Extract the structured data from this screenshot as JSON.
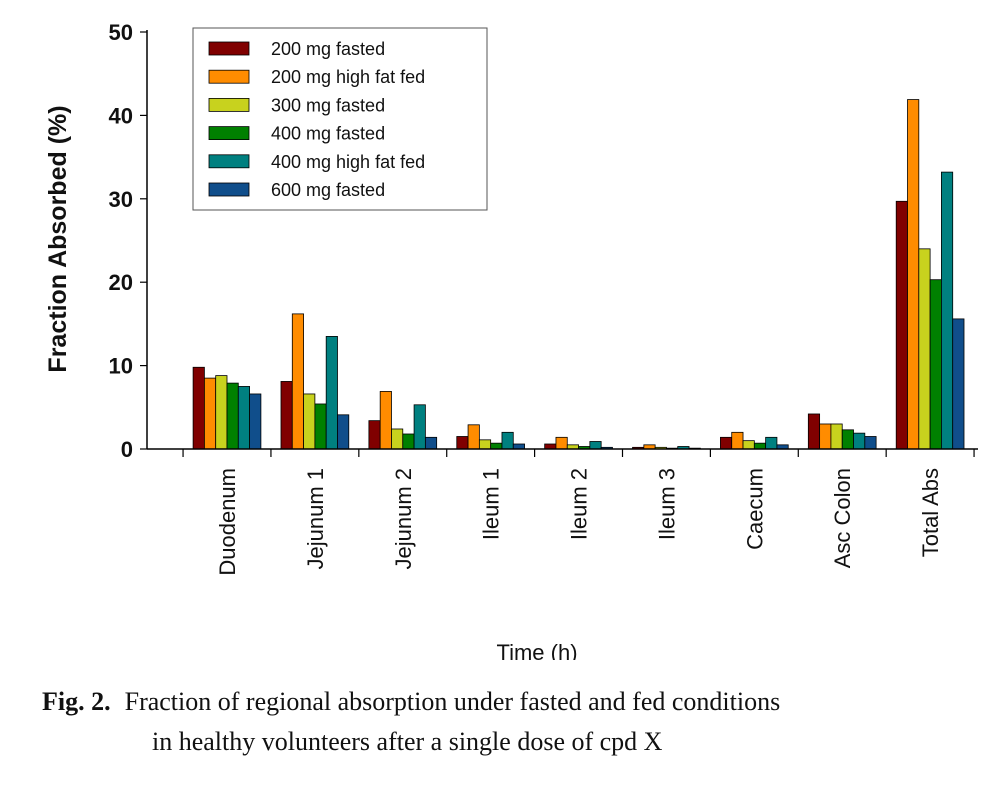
{
  "chart_data": {
    "type": "bar",
    "ylabel": "Fraction Absorbed (%)",
    "xlabel": "Time (h)",
    "ylim": [
      0,
      50
    ],
    "yticks": [
      0,
      10,
      20,
      30,
      40,
      50
    ],
    "grid": false,
    "legend_position": "top-left",
    "categories": [
      "Duodenum",
      "Jejunum 1",
      "Jejunum 2",
      "Ileum 1",
      "Ileum 2",
      "Ileum 3",
      "Caecum",
      "Asc Colon",
      "Total Abs"
    ],
    "series": [
      {
        "name": "200 mg fasted",
        "color": "#800000",
        "values": [
          9.8,
          8.1,
          3.4,
          1.5,
          0.6,
          0.2,
          1.4,
          4.2,
          29.7
        ]
      },
      {
        "name": "200 mg high fat fed",
        "color": "#ff8c00",
        "values": [
          8.5,
          16.2,
          6.9,
          2.9,
          1.4,
          0.5,
          2.0,
          3.0,
          41.9
        ]
      },
      {
        "name": "300 mg fasted",
        "color": "#c8d21e",
        "values": [
          8.8,
          6.6,
          2.4,
          1.1,
          0.5,
          0.2,
          1.0,
          3.0,
          24.0
        ]
      },
      {
        "name": "400 mg fasted",
        "color": "#008000",
        "values": [
          7.9,
          5.4,
          1.8,
          0.7,
          0.3,
          0.1,
          0.7,
          2.3,
          20.3
        ]
      },
      {
        "name": "400 mg high fat fed",
        "color": "#008080",
        "values": [
          7.5,
          13.5,
          5.3,
          2.0,
          0.9,
          0.3,
          1.4,
          1.9,
          33.2
        ]
      },
      {
        "name": "600 mg fasted",
        "color": "#104e8b",
        "values": [
          6.6,
          4.1,
          1.4,
          0.6,
          0.2,
          0.1,
          0.5,
          1.5,
          15.6
        ]
      }
    ]
  },
  "caption": {
    "label": "Fig. 2.",
    "line1": "Fraction of regional absorption under fasted and fed conditions",
    "line2": "in healthy volunteers after a single dose of cpd X"
  }
}
